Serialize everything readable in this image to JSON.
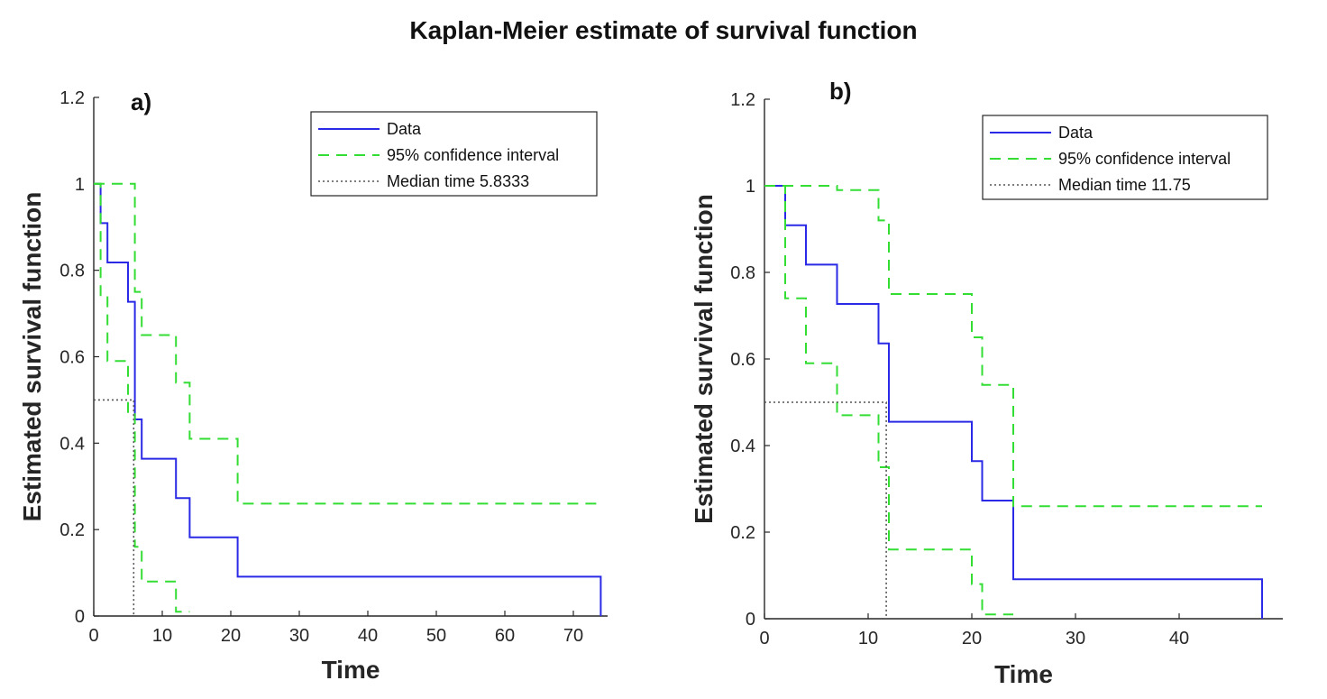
{
  "title": "Kaplan-Meier estimate of survival function",
  "colors": {
    "data": "#2a2ae6",
    "ci": "#33dd33",
    "median": "#555555",
    "axis": "#262626"
  },
  "chart_data": [
    {
      "type": "line",
      "panel_label": "a)",
      "xlabel": "Time",
      "ylabel": "Estimated survival function",
      "xlim": [
        0,
        75
      ],
      "ylim": [
        0,
        1.2
      ],
      "xticks": [
        "0",
        "10",
        "20",
        "30",
        "40",
        "50",
        "60",
        "70"
      ],
      "yticks": [
        "0",
        "0.2",
        "0.4",
        "0.6",
        "0.8",
        "1",
        "1.2"
      ],
      "legend_position": "top-right",
      "series": [
        {
          "name": "Data",
          "style": "solid",
          "x": [
            0,
            1,
            1,
            2,
            2,
            5,
            5,
            6,
            6,
            7,
            7,
            12,
            12,
            14,
            14,
            21,
            21,
            74,
            74
          ],
          "y": [
            1,
            1,
            0.909,
            0.909,
            0.818,
            0.818,
            0.727,
            0.727,
            0.455,
            0.455,
            0.364,
            0.364,
            0.273,
            0.273,
            0.182,
            0.182,
            0.091,
            0.091,
            0
          ]
        },
        {
          "name": "95% confidence interval",
          "style": "dashed",
          "x": [
            0,
            6,
            6,
            7,
            7,
            12,
            12,
            14,
            14,
            21,
            21,
            74
          ],
          "y": [
            1,
            1,
            0.75,
            0.75,
            0.65,
            0.65,
            0.54,
            0.54,
            0.41,
            0.41,
            0.26,
            0.26
          ]
        },
        {
          "name": "95% confidence interval lower",
          "style": "dashed",
          "legend": false,
          "x": [
            0,
            1,
            1,
            2,
            2,
            5,
            5,
            6,
            6,
            7,
            7,
            12,
            12,
            14
          ],
          "y": [
            1,
            1,
            0.74,
            0.74,
            0.59,
            0.59,
            0.47,
            0.47,
            0.16,
            0.16,
            0.08,
            0.08,
            0.01,
            0.01
          ]
        },
        {
          "name": "Median time 5.8333",
          "style": "dotted",
          "x": [
            0,
            5.8333,
            5.8333
          ],
          "y": [
            0.5,
            0.5,
            0
          ]
        }
      ]
    },
    {
      "type": "line",
      "panel_label": "b)",
      "xlabel": "Time",
      "ylabel": "Estimated survival function",
      "xlim": [
        0,
        50
      ],
      "ylim": [
        0,
        1.2
      ],
      "xticks": [
        "0",
        "10",
        "20",
        "30",
        "40"
      ],
      "yticks": [
        "0",
        "0.2",
        "0.4",
        "0.6",
        "0.8",
        "1",
        "1.2"
      ],
      "legend_position": "top-right",
      "series": [
        {
          "name": "Data",
          "style": "solid",
          "x": [
            0,
            2,
            2,
            4,
            4,
            7,
            7,
            11,
            11,
            12,
            12,
            20,
            20,
            21,
            21,
            24,
            24,
            48,
            48
          ],
          "y": [
            1,
            1,
            0.909,
            0.909,
            0.818,
            0.818,
            0.727,
            0.727,
            0.636,
            0.636,
            0.455,
            0.455,
            0.364,
            0.364,
            0.273,
            0.273,
            0.091,
            0.091,
            0
          ]
        },
        {
          "name": "95% confidence interval",
          "style": "dashed",
          "x": [
            0,
            7,
            7,
            11,
            11,
            12,
            12,
            20,
            20,
            21,
            21,
            24,
            24,
            48
          ],
          "y": [
            1,
            1,
            0.99,
            0.99,
            0.92,
            0.92,
            0.75,
            0.75,
            0.65,
            0.65,
            0.54,
            0.54,
            0.26,
            0.26
          ]
        },
        {
          "name": "95% confidence interval lower",
          "style": "dashed",
          "legend": false,
          "x": [
            0,
            2,
            2,
            4,
            4,
            7,
            7,
            11,
            11,
            12,
            12,
            20,
            20,
            21,
            21,
            24
          ],
          "y": [
            1,
            1,
            0.74,
            0.74,
            0.59,
            0.59,
            0.47,
            0.47,
            0.35,
            0.35,
            0.16,
            0.16,
            0.08,
            0.08,
            0.01,
            0.01
          ]
        },
        {
          "name": "Median time 11.75",
          "style": "dotted",
          "x": [
            0,
            11.75,
            11.75
          ],
          "y": [
            0.5,
            0.5,
            0
          ]
        }
      ]
    }
  ]
}
